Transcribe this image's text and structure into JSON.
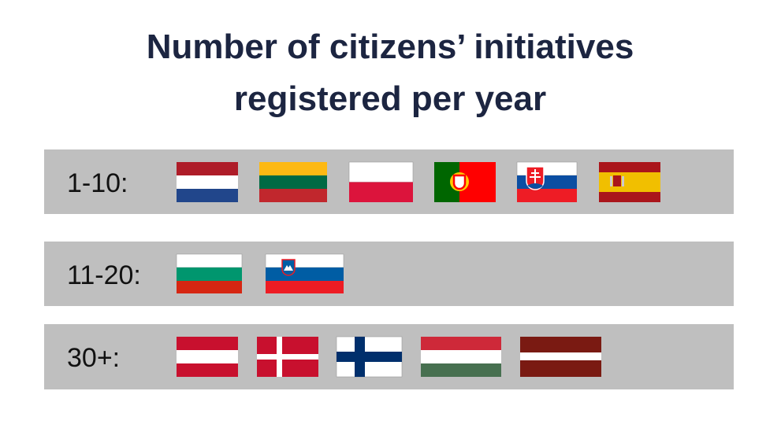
{
  "title": [
    "Number of citizens’ initiatives",
    "registered per year"
  ],
  "rows": [
    "1-10:",
    "11-20:",
    "30+:"
  ]
}
